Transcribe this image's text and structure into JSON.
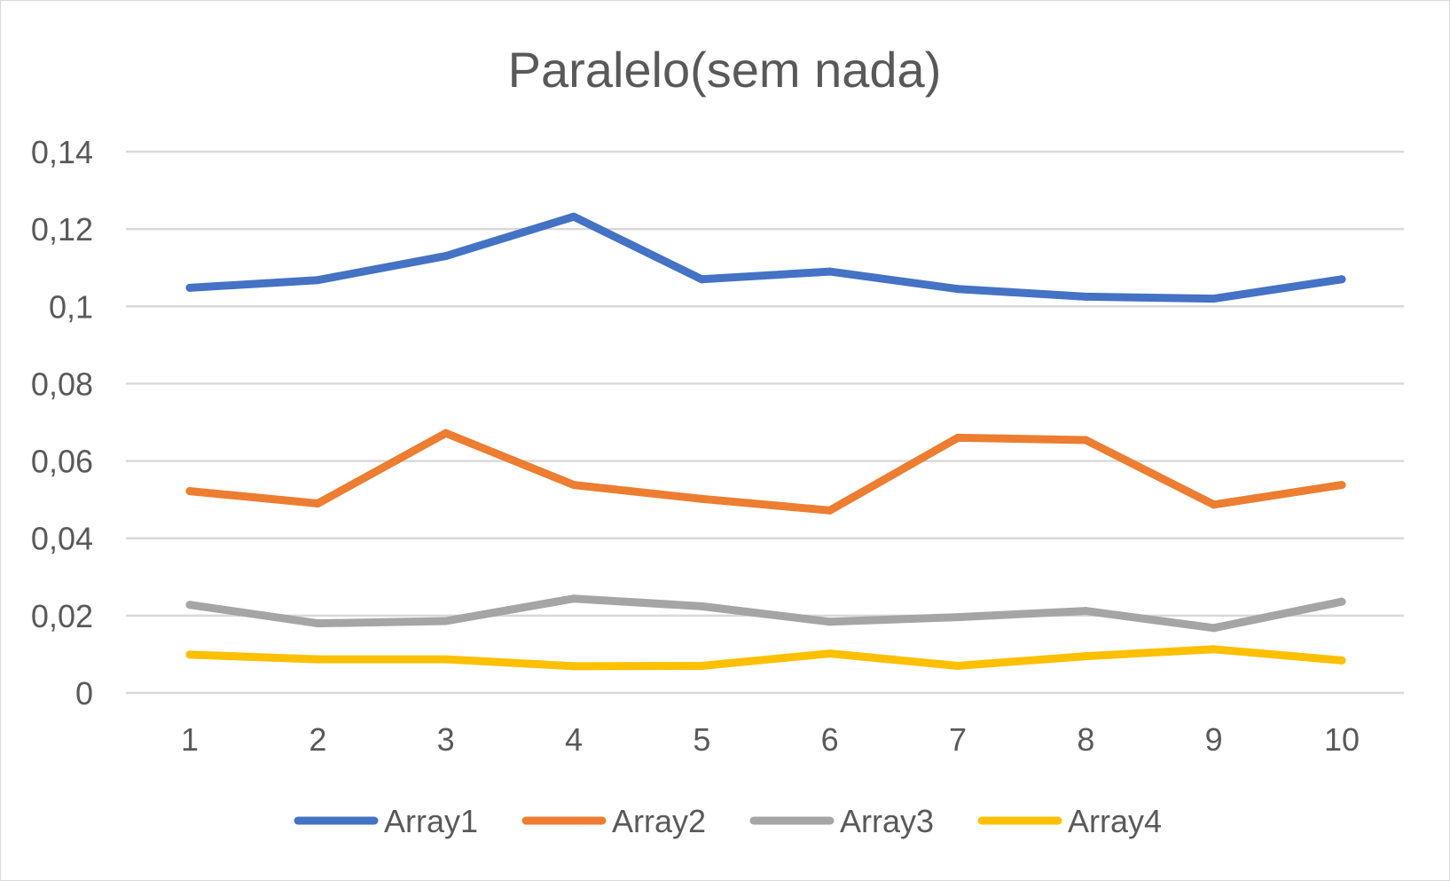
{
  "chart_data": {
    "type": "line",
    "title": "Paralelo(sem nada)",
    "xlabel": "",
    "ylabel": "",
    "x": [
      "1",
      "2",
      "3",
      "4",
      "5",
      "6",
      "7",
      "8",
      "9",
      "10"
    ],
    "y_ticks": [
      "0",
      "0,02",
      "0,04",
      "0,06",
      "0,08",
      "0,1",
      "0,12",
      "0,14"
    ],
    "ylim": [
      0,
      0.14
    ],
    "grid": true,
    "legend_position": "bottom",
    "series": [
      {
        "name": "Array1",
        "color": "#4472C4",
        "values": [
          0.1048,
          0.1068,
          0.113,
          0.1232,
          0.107,
          0.109,
          0.1045,
          0.1025,
          0.102,
          0.107
        ]
      },
      {
        "name": "Array2",
        "color": "#ED7D31",
        "values": [
          0.0522,
          0.049,
          0.0672,
          0.0538,
          0.0502,
          0.0472,
          0.066,
          0.0654,
          0.0487,
          0.0538
        ]
      },
      {
        "name": "Array3",
        "color": "#A5A5A5",
        "values": [
          0.0228,
          0.018,
          0.0186,
          0.0244,
          0.0224,
          0.0184,
          0.0196,
          0.0212,
          0.0168,
          0.0236
        ]
      },
      {
        "name": "Array4",
        "color": "#FFC000",
        "values": [
          0.0099,
          0.0087,
          0.0087,
          0.0069,
          0.007,
          0.0102,
          0.007,
          0.0095,
          0.0113,
          0.0084
        ]
      }
    ]
  }
}
